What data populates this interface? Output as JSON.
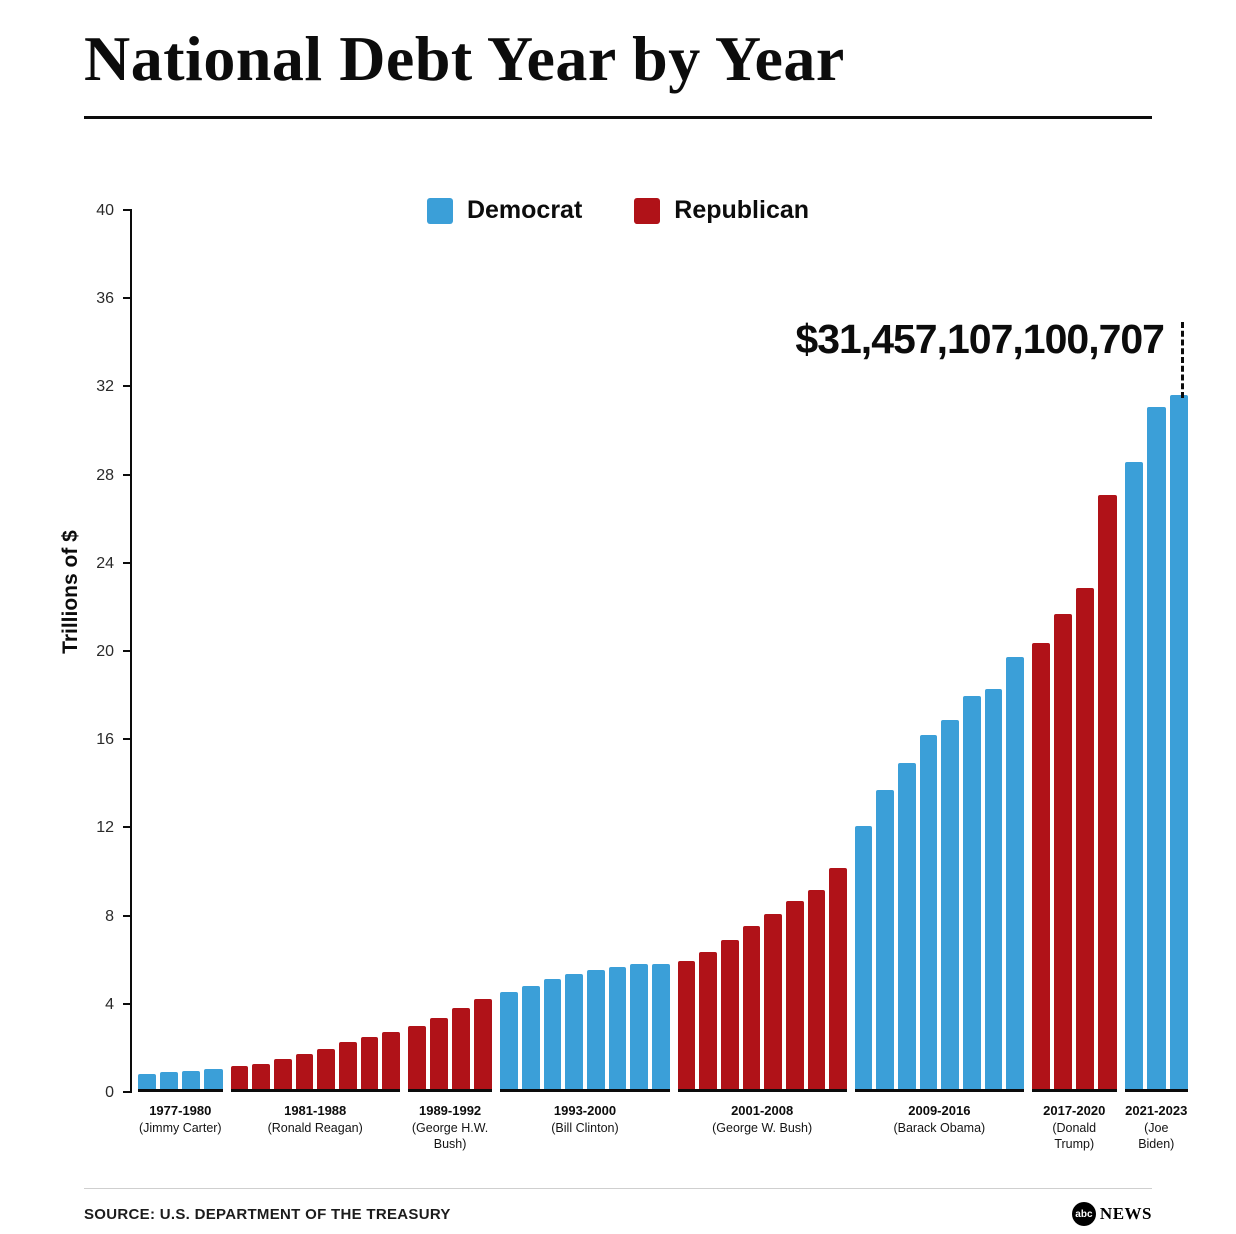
{
  "title": "National Debt Year by Year",
  "legend": {
    "items": [
      {
        "label": "Democrat",
        "party": "Democrat"
      },
      {
        "label": "Republican",
        "party": "Republican"
      }
    ]
  },
  "footer": {
    "source": "SOURCE: U.S. DEPARTMENT OF THE TREASURY",
    "logo_abc": "abc",
    "logo_news": "NEWS"
  },
  "chart_data": {
    "type": "bar",
    "title": "National Debt Year by Year",
    "ylabel": "Trillions of $",
    "ylim": [
      0,
      40
    ],
    "yticks": [
      0,
      4,
      8,
      12,
      16,
      20,
      24,
      28,
      32,
      36,
      40
    ],
    "annotation": "$31,457,107,100,707",
    "annotation_points_to": {
      "year": 2023,
      "value_trillions": 31.46
    },
    "legend_position": "top",
    "grid": false,
    "colors": {
      "Democrat": "#3B9FD8",
      "Republican": "#B01218"
    },
    "groups": [
      {
        "years": "1977-1980",
        "president": "(Jimmy Carter)",
        "party": "Democrat",
        "values": [
          0.7,
          0.78,
          0.83,
          0.91
        ]
      },
      {
        "years": "1981-1988",
        "president": "(Ronald Reagan)",
        "party": "Republican",
        "values": [
          1.03,
          1.14,
          1.38,
          1.57,
          1.82,
          2.13,
          2.35,
          2.6
        ]
      },
      {
        "years": "1989-1992",
        "president": "(George H.W.\nBush)",
        "party": "Republican",
        "values": [
          2.86,
          3.23,
          3.67,
          4.06
        ]
      },
      {
        "years": "1993-2000",
        "president": "(Bill Clinton)",
        "party": "Democrat",
        "values": [
          4.41,
          4.69,
          4.97,
          5.22,
          5.41,
          5.53,
          5.66,
          5.67
        ]
      },
      {
        "years": "2001-2008",
        "president": "(George W. Bush)",
        "party": "Republican",
        "values": [
          5.81,
          6.23,
          6.78,
          7.38,
          7.93,
          8.51,
          9.01,
          10.02
        ]
      },
      {
        "years": "2009-2016",
        "president": "(Barack Obama)",
        "party": "Democrat",
        "values": [
          11.91,
          13.56,
          14.79,
          16.07,
          16.74,
          17.82,
          18.15,
          19.57
        ]
      },
      {
        "years": "2017-2020",
        "president": "(Donald\nTrump)",
        "party": "Republican",
        "values": [
          20.24,
          21.52,
          22.72,
          26.95
        ]
      },
      {
        "years": "2021-2023",
        "president": "(Joe\nBiden)",
        "party": "Democrat",
        "values": [
          28.43,
          30.93,
          31.46
        ]
      }
    ]
  }
}
